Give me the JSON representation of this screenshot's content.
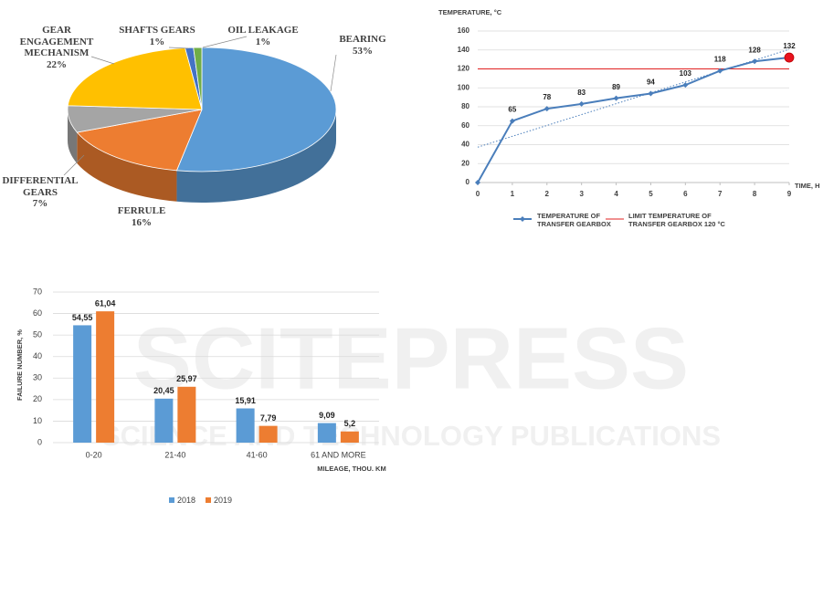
{
  "watermark": {
    "title": "SCITEPRESS",
    "subtitle": "SCIENCE AND TECHNOLOGY PUBLICATIONS"
  },
  "chart_data": [
    {
      "type": "pie",
      "categories": [
        "BEARING",
        "FERRULE",
        "DIFFERENTIAL GEARS",
        "GEAR ENGAGEMENT MECHANISM",
        "SHAFTS GEARS",
        "OIL LEAKAGE"
      ],
      "values": [
        53,
        16,
        7,
        22,
        1,
        1
      ],
      "value_labels": [
        "53%",
        "16%",
        "7%",
        "22%",
        "1%",
        "1%"
      ],
      "colors": [
        "#5b9bd5",
        "#ed7d31",
        "#a5a5a5",
        "#ffc000",
        "#4472c4",
        "#70ad47"
      ]
    },
    {
      "type": "line",
      "y_label": "TEMPERATURE, °C",
      "x_label": "TIME, H",
      "x": [
        0,
        1,
        2,
        3,
        4,
        5,
        6,
        7,
        8,
        9
      ],
      "series": [
        {
          "name": "TEMPERATURE OF TRANSFER GEARBOX",
          "color": "#4a7ebb",
          "values": [
            0,
            65,
            78,
            83,
            89,
            94,
            103,
            118,
            128,
            132
          ],
          "value_labels": [
            null,
            "65",
            "78",
            "83",
            "89",
            "94",
            "103",
            "118",
            "128",
            "132"
          ]
        }
      ],
      "limit": {
        "name": "LIMIT TEMPERATURE OF TRANSFER GEARBOX 120 °C",
        "value": 120,
        "color": "#e02020"
      },
      "trendline": "linear",
      "highlight": {
        "x": 9,
        "color": "#e8131f"
      },
      "xlim": [
        0,
        9
      ],
      "xticks": [
        0,
        1,
        2,
        3,
        4,
        5,
        6,
        7,
        8,
        9
      ],
      "ylim": [
        0,
        160
      ],
      "yticks": [
        0,
        20,
        40,
        60,
        80,
        100,
        120,
        140,
        160
      ],
      "grid": true
    },
    {
      "type": "bar",
      "y_label": "FAILURE NUMBER, %",
      "x_label": "MILEAGE, THOU. KM",
      "categories": [
        "0-20",
        "21-40",
        "41-60",
        "61 AND MORE"
      ],
      "series": [
        {
          "name": "2018",
          "color": "#5b9bd5",
          "values": [
            54.55,
            20.45,
            15.91,
            9.09
          ],
          "value_labels": [
            "54,55",
            "20,45",
            "15,91",
            "9,09"
          ]
        },
        {
          "name": "2019",
          "color": "#ed7d31",
          "values": [
            61.04,
            25.97,
            7.79,
            5.2
          ],
          "value_labels": [
            "61,04",
            "25,97",
            "7,79",
            "5,2"
          ]
        }
      ],
      "ylim": [
        0,
        70
      ],
      "yticks": [
        0,
        10,
        20,
        30,
        40,
        50,
        60,
        70
      ],
      "grid": true
    }
  ]
}
